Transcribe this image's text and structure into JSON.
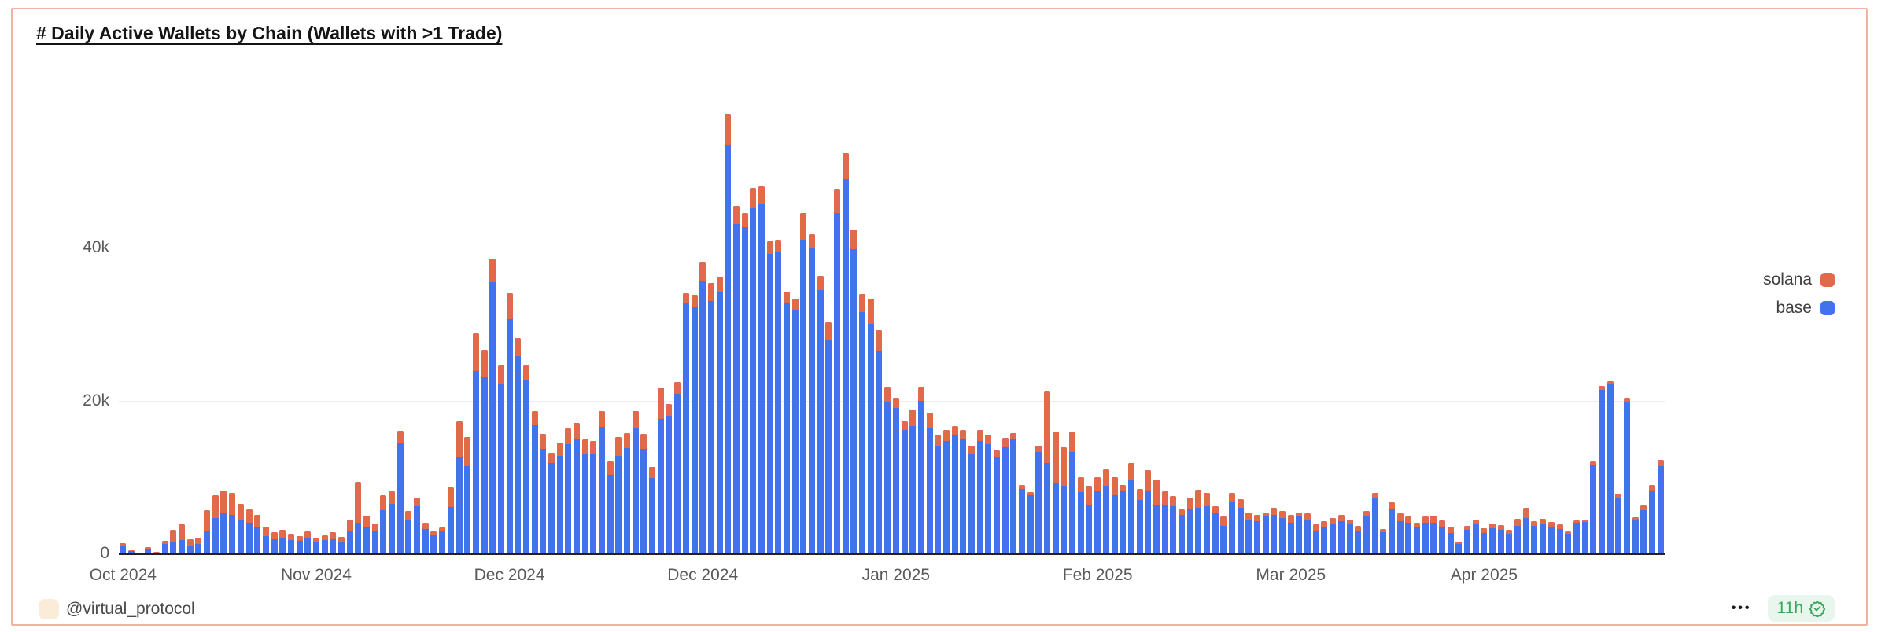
{
  "card": {
    "border_color": "#EFB4A0",
    "background": "#ffffff"
  },
  "header": {
    "title": "# Daily Active Wallets by Chain (Wallets with >1 Trade)"
  },
  "legend": {
    "position": "right",
    "items": [
      {
        "label": "solana",
        "color": "#E2694A"
      },
      {
        "label": "base",
        "color": "#4372ED"
      }
    ]
  },
  "footer": {
    "handle": "@virtual_protocol",
    "avatar_color": "#FAECD8",
    "menu_label": "•••",
    "badge": {
      "text": "11h",
      "color": "#3BA55C",
      "background": "#E9F6ED"
    }
  },
  "chart_data": {
    "type": "bar",
    "stacked": true,
    "title": "# Daily Active Wallets by Chain (Wallets with >1 Trade)",
    "ylabel": "",
    "xlabel": "",
    "grid": true,
    "legend_position": "right",
    "values_in": "thousands of wallets",
    "ylim_thousands": [
      0,
      65
    ],
    "yticks": [
      {
        "v": 0,
        "label": "0"
      },
      {
        "v": 20,
        "label": "20k"
      },
      {
        "v": 40,
        "label": "40k"
      }
    ],
    "xticks": [
      {
        "i": 0,
        "label": "Oct 2024"
      },
      {
        "i": 23,
        "label": "Nov 2024"
      },
      {
        "i": 46,
        "label": "Dec 2024"
      },
      {
        "i": 69,
        "label": "Dec 2024"
      },
      {
        "i": 92,
        "label": "Jan 2025"
      },
      {
        "i": 116,
        "label": "Feb 2025"
      },
      {
        "i": 139,
        "label": "Mar 2025"
      },
      {
        "i": 162,
        "label": "Apr 2025"
      }
    ],
    "series": [
      {
        "name": "base",
        "color": "#4372ED",
        "values": [
          1.0,
          0.3,
          0.1,
          0.55,
          0.2,
          1.2,
          1.4,
          1.75,
          0.9,
          1.2,
          2.9,
          4.6,
          5.2,
          5.0,
          4.3,
          4.0,
          3.5,
          2.3,
          1.9,
          2.1,
          1.7,
          1.6,
          2.0,
          1.4,
          1.7,
          1.9,
          1.4,
          2.9,
          4.0,
          3.4,
          3.0,
          5.7,
          6.5,
          14.5,
          4.4,
          6.2,
          3.2,
          2.4,
          3.0,
          6.1,
          12.6,
          11.4,
          23.9,
          23.0,
          35.5,
          22.1,
          30.7,
          25.8,
          22.7,
          16.8,
          13.7,
          11.8,
          12.8,
          14.3,
          15.0,
          13.0,
          13.0,
          16.6,
          10.3,
          12.8,
          13.8,
          16.5,
          13.7,
          9.9,
          17.6,
          18.0,
          20.9,
          32.8,
          32.3,
          35.7,
          33.0,
          34.2,
          53.5,
          43.1,
          42.7,
          45.3,
          45.7,
          39.2,
          39.4,
          32.7,
          31.8,
          41.0,
          40.0,
          34.5,
          28.0,
          44.5,
          49.0,
          39.8,
          31.6,
          30.0,
          26.5,
          19.8,
          19.0,
          16.1,
          16.7,
          20.0,
          16.5,
          14.1,
          14.7,
          15.5,
          14.9,
          13.1,
          14.7,
          14.3,
          12.7,
          13.9,
          14.9,
          8.4,
          7.6,
          13.3,
          11.8,
          9.2,
          8.8,
          13.3,
          8.0,
          6.4,
          8.2,
          8.8,
          7.6,
          8.2,
          9.6,
          7.0,
          8.1,
          6.4,
          6.4,
          6.2,
          5.0,
          5.8,
          6.0,
          6.2,
          5.2,
          3.6,
          6.7,
          6.0,
          4.4,
          4.2,
          4.8,
          5.0,
          4.6,
          4.0,
          4.8,
          4.4,
          3.0,
          3.4,
          3.8,
          4.2,
          3.8,
          3.0,
          4.8,
          7.3,
          2.8,
          5.8,
          4.2,
          4.0,
          3.5,
          4.0,
          4.0,
          3.5,
          2.7,
          1.2,
          3.1,
          3.8,
          2.7,
          3.3,
          3.1,
          2.6,
          3.6,
          4.6,
          3.6,
          3.8,
          3.4,
          3.2,
          2.6,
          4.0,
          4.1,
          11.6,
          21.4,
          22.1,
          7.3,
          19.8,
          4.4,
          5.7,
          8.2,
          11.4
        ]
      },
      {
        "name": "solana",
        "color": "#E2694A",
        "values": [
          0.3,
          0.1,
          0.05,
          0.25,
          0.05,
          0.4,
          1.7,
          2.05,
          1.0,
          0.9,
          2.8,
          3.0,
          3.0,
          2.9,
          2.2,
          1.8,
          1.5,
          1.2,
          0.9,
          1.0,
          0.9,
          0.7,
          0.9,
          0.7,
          0.7,
          0.9,
          0.8,
          1.5,
          5.4,
          1.5,
          0.9,
          1.9,
          1.6,
          1.5,
          1.2,
          1.1,
          0.8,
          0.5,
          0.4,
          2.5,
          4.7,
          3.8,
          4.9,
          3.6,
          3.1,
          2.6,
          3.3,
          2.4,
          2.0,
          1.8,
          1.9,
          1.4,
          1.7,
          2.1,
          2.1,
          1.9,
          1.7,
          2.0,
          1.7,
          2.4,
          1.9,
          2.1,
          1.9,
          1.4,
          4.1,
          1.5,
          1.5,
          1.2,
          1.5,
          2.5,
          2.4,
          2.0,
          4.0,
          2.4,
          1.8,
          2.5,
          2.3,
          1.6,
          1.6,
          1.6,
          1.5,
          3.5,
          1.8,
          1.8,
          2.2,
          3.1,
          3.4,
          2.6,
          2.3,
          3.3,
          2.7,
          2.0,
          1.4,
          1.2,
          2.1,
          1.8,
          1.9,
          1.4,
          1.4,
          1.2,
          1.2,
          1.0,
          1.4,
          1.2,
          0.8,
          1.2,
          0.8,
          0.6,
          0.4,
          0.8,
          9.4,
          6.7,
          5.1,
          2.6,
          2.0,
          2.4,
          1.8,
          2.2,
          2.4,
          0.8,
          2.2,
          1.4,
          2.8,
          3.3,
          1.7,
          1.3,
          0.8,
          1.5,
          2.3,
          1.7,
          1.0,
          1.2,
          1.2,
          1.1,
          1.0,
          0.8,
          0.6,
          1.0,
          1.0,
          1.0,
          0.6,
          0.8,
          0.8,
          0.8,
          0.8,
          0.8,
          0.6,
          0.6,
          0.8,
          0.6,
          0.4,
          0.9,
          1.0,
          0.8,
          0.5,
          0.8,
          0.9,
          0.8,
          0.8,
          0.3,
          0.5,
          0.6,
          0.6,
          0.6,
          0.6,
          0.5,
          0.9,
          1.4,
          0.6,
          0.7,
          0.7,
          0.6,
          0.3,
          0.3,
          0.3,
          0.4,
          0.5,
          0.4,
          0.5,
          0.6,
          0.3,
          0.6,
          0.7,
          0.8
        ]
      }
    ]
  }
}
